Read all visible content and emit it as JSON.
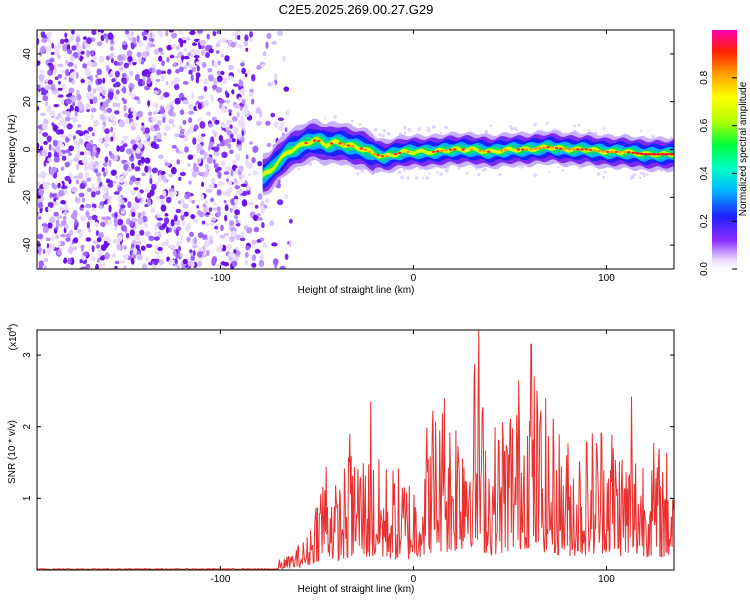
{
  "title": "C2E5.2025.269.00.27.G29",
  "chart_data": [
    {
      "type": "heatmap",
      "name": "spectrogram",
      "xlabel": "Height of straight line (km)",
      "ylabel": "Frequency (Hz)",
      "xlim": [
        -195,
        135
      ],
      "ylim": [
        -50,
        50
      ],
      "xticks": [
        -100,
        0,
        100
      ],
      "yticks": [
        -40,
        -20,
        0,
        20,
        40
      ],
      "noise_region_km": [
        -195,
        -63
      ],
      "signal_trace": {
        "x": [
          -78,
          -74,
          -70,
          -65,
          -60,
          -55,
          -50,
          -45,
          -40,
          -35,
          -30,
          -25,
          -20,
          -15,
          -10,
          -5,
          0,
          10,
          20,
          30,
          40,
          50,
          60,
          70,
          80,
          90,
          100,
          110,
          120,
          135
        ],
        "frequency": [
          -11,
          -9,
          -5,
          -1,
          1,
          3,
          4,
          2,
          3,
          2,
          1,
          0,
          -2,
          -3,
          -2,
          -1,
          -1,
          -1,
          0,
          0,
          -1,
          0,
          0,
          1,
          0,
          0,
          -1,
          -1,
          -2,
          -2
        ]
      },
      "colorbar": {
        "label": "Normalized spectral amplitude",
        "ticks": [
          "0.0",
          "0.2",
          "0.4",
          "0.6",
          "0.8"
        ],
        "range": [
          0,
          1
        ]
      }
    },
    {
      "type": "line",
      "name": "snr",
      "xlabel": "Height of straight line (km)",
      "ylabel": "SNR (10 * v/v)",
      "yscale_label": "(x10",
      "yscale_exp": "4",
      "xlim": [
        -195,
        135
      ],
      "ylim": [
        0,
        3.35
      ],
      "xticks": [
        -100,
        0,
        100
      ],
      "yticks": [
        1,
        2,
        3
      ],
      "color": "#e83030",
      "envelope": {
        "x": [
          -195,
          -80,
          -65,
          -55,
          -45,
          -40,
          -30,
          -20,
          -10,
          0,
          10,
          20,
          30,
          40,
          50,
          60,
          70,
          80,
          90,
          100,
          110,
          120,
          135
        ],
        "max": [
          0.04,
          0.04,
          0.2,
          0.5,
          1.9,
          1.2,
          1.9,
          1.6,
          1.5,
          1.4,
          2.5,
          2.4,
          3.3,
          2.0,
          2.6,
          3.1,
          2.3,
          1.9,
          2.0,
          2.4,
          1.8,
          1.9,
          1.7
        ]
      },
      "peaks": [
        {
          "x": -33,
          "y": 1.9
        },
        {
          "x": -22,
          "y": 2.35
        },
        {
          "x": 16,
          "y": 2.4
        },
        {
          "x": 34,
          "y": 3.35
        },
        {
          "x": 61,
          "y": 3.15
        },
        {
          "x": 113,
          "y": 2.42
        }
      ]
    }
  ]
}
